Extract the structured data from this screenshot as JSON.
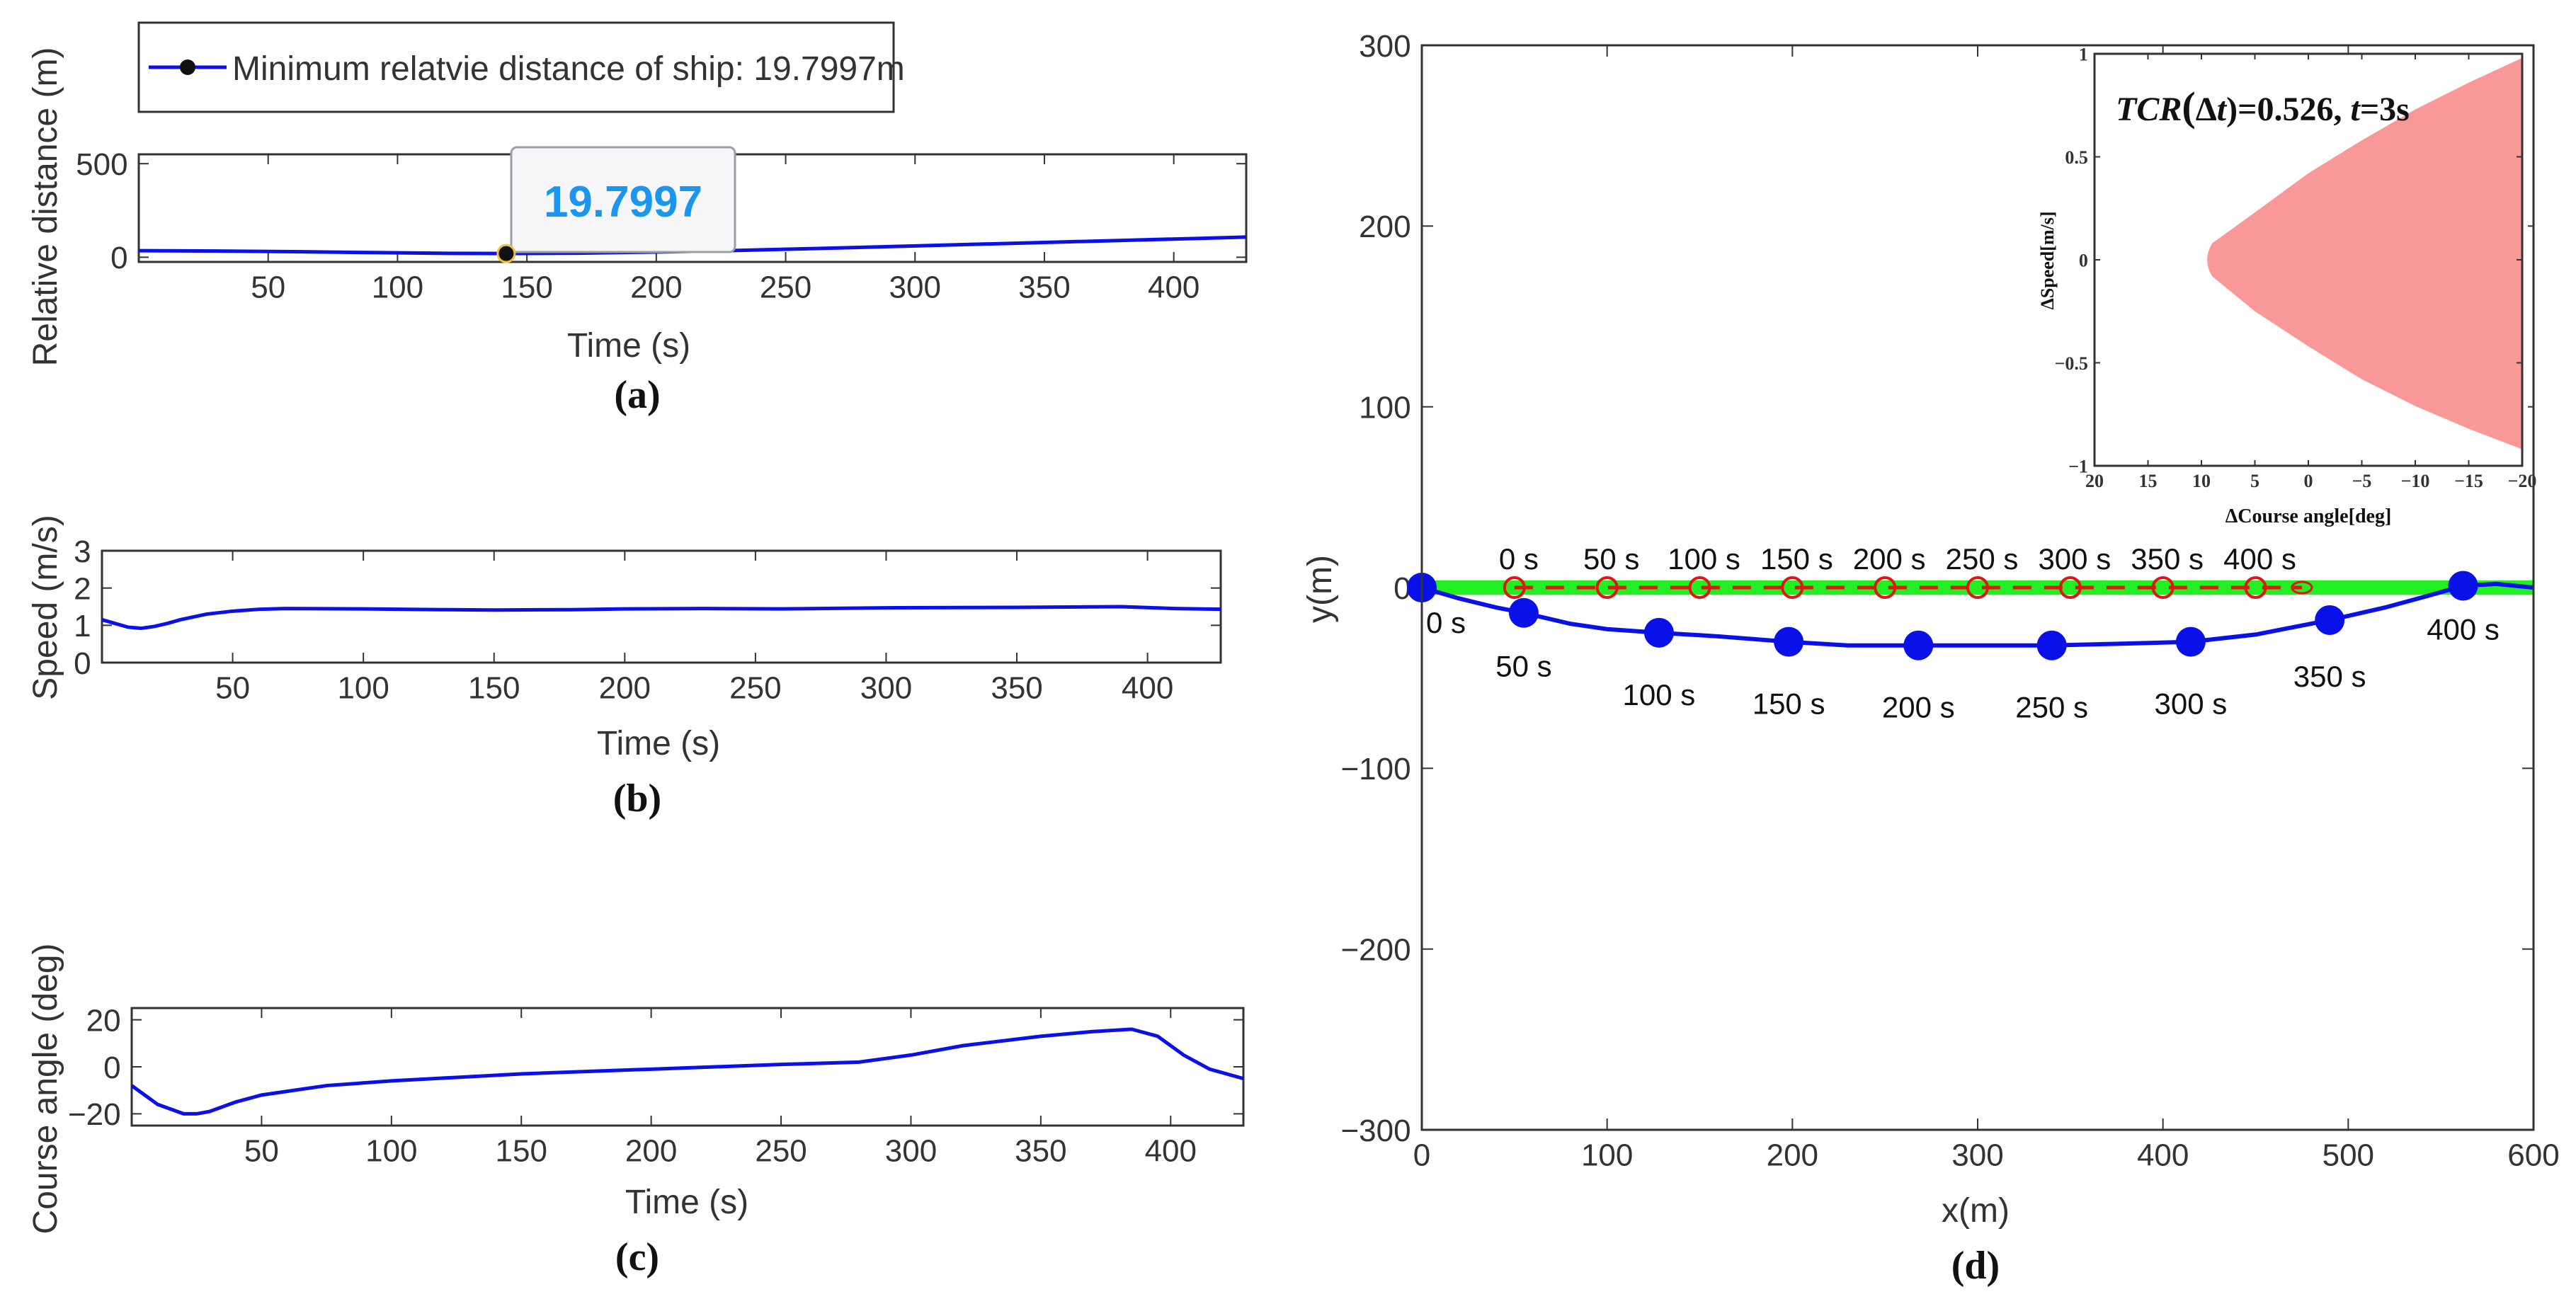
{
  "colors": {
    "ship": "#0a10e8",
    "target": "#e01515",
    "band": "#22ee22",
    "region": "#f89898",
    "tip": "#1a96ee",
    "axis": "#333333"
  },
  "chart_data": [
    {
      "id": "a",
      "type": "line",
      "panel_label": "(a)",
      "xlabel": "Time (s)",
      "ylabel": "Relative distance (m)",
      "xlim": [
        0,
        428
      ],
      "ylim": [
        -25,
        550
      ],
      "xticks": [
        50,
        100,
        150,
        200,
        250,
        300,
        350,
        400
      ],
      "yticks": [
        0,
        500
      ],
      "legend": {
        "label": "Minimum relatvie distance of ship:",
        "value": "19.7997m"
      },
      "datatip": {
        "x": 142,
        "y": 19.7997,
        "text": "19.7997"
      },
      "x": [
        0,
        30,
        60,
        90,
        120,
        142,
        170,
        200,
        230,
        260,
        290,
        320,
        350,
        380,
        410,
        428
      ],
      "y": [
        35,
        33,
        30,
        25,
        21,
        19.8,
        22,
        28,
        36,
        46,
        57,
        68,
        79,
        90,
        101,
        108
      ]
    },
    {
      "id": "b",
      "type": "line",
      "panel_label": "(b)",
      "xlabel": "Time (s)",
      "ylabel": "Speed (m/s)",
      "xlim": [
        0,
        428
      ],
      "ylim": [
        0,
        3
      ],
      "xticks": [
        50,
        100,
        150,
        200,
        250,
        300,
        350,
        400
      ],
      "yticks": [
        0,
        1,
        2,
        3
      ],
      "x": [
        0,
        5,
        10,
        15,
        20,
        25,
        30,
        40,
        50,
        60,
        70,
        100,
        130,
        150,
        180,
        200,
        230,
        260,
        300,
        350,
        390,
        410,
        428
      ],
      "y": [
        1.15,
        1.05,
        0.95,
        0.92,
        0.97,
        1.05,
        1.15,
        1.3,
        1.38,
        1.43,
        1.45,
        1.44,
        1.42,
        1.41,
        1.42,
        1.44,
        1.45,
        1.44,
        1.47,
        1.48,
        1.5,
        1.45,
        1.43
      ]
    },
    {
      "id": "c",
      "type": "line",
      "panel_label": "(c)",
      "xlabel": "Time (s)",
      "ylabel": "Course angle (deg)",
      "xlim": [
        0,
        428
      ],
      "ylim": [
        -25,
        25
      ],
      "xticks": [
        50,
        100,
        150,
        200,
        250,
        300,
        350,
        400
      ],
      "yticks": [
        -20,
        0,
        20
      ],
      "x": [
        0,
        10,
        20,
        25,
        30,
        40,
        50,
        75,
        100,
        150,
        200,
        250,
        280,
        300,
        320,
        350,
        370,
        385,
        395,
        405,
        415,
        428
      ],
      "y": [
        -8,
        -16,
        -20,
        -20,
        -19,
        -15,
        -12,
        -8,
        -6,
        -3,
        -1,
        1,
        2,
        5,
        9,
        13,
        15,
        16,
        13,
        5,
        -1,
        -5
      ]
    },
    {
      "id": "d",
      "type": "scatter",
      "panel_label": "(d)",
      "xlabel": "x(m)",
      "ylabel": "y(m)",
      "xlim": [
        0,
        600
      ],
      "ylim": [
        -300,
        300
      ],
      "xticks": [
        0,
        100,
        200,
        300,
        400,
        500,
        600
      ],
      "yticks": [
        -300,
        -200,
        -100,
        0,
        100,
        200,
        300
      ],
      "band": {
        "x": [
          0,
          600
        ],
        "y": [
          -4,
          4
        ]
      },
      "ship_path": {
        "x": [
          0,
          20,
          40,
          55,
          80,
          100,
          128,
          160,
          198,
          230,
          268,
          300,
          340,
          380,
          415,
          450,
          490,
          520,
          545,
          562,
          580,
          600
        ],
        "y": [
          0,
          -6,
          -11,
          -14,
          -20,
          -23,
          -25,
          -27,
          -30,
          -32,
          -32,
          -32,
          -32,
          -31,
          -30,
          -26,
          -18,
          -11,
          -4,
          1,
          2,
          0
        ]
      },
      "ship_points": [
        {
          "x": 0,
          "y": 0,
          "label": "0 s"
        },
        {
          "x": 55,
          "y": -14,
          "label": "50 s"
        },
        {
          "x": 128,
          "y": -25,
          "label": "100 s"
        },
        {
          "x": 198,
          "y": -30,
          "label": "150 s"
        },
        {
          "x": 268,
          "y": -32,
          "label": "200 s"
        },
        {
          "x": 340,
          "y": -32,
          "label": "250 s"
        },
        {
          "x": 415,
          "y": -30,
          "label": "300 s"
        },
        {
          "x": 490,
          "y": -18,
          "label": "350 s"
        },
        {
          "x": 562,
          "y": 1,
          "label": "400 s"
        }
      ],
      "target_path": {
        "x": [
          50,
          475
        ],
        "y": [
          0,
          0
        ]
      },
      "target_points": [
        {
          "x": 50,
          "y": 0,
          "label": "0 s"
        },
        {
          "x": 100,
          "y": 0,
          "label": "50 s"
        },
        {
          "x": 150,
          "y": 0,
          "label": "100 s"
        },
        {
          "x": 200,
          "y": 0,
          "label": "150 s"
        },
        {
          "x": 250,
          "y": 0,
          "label": "200 s"
        },
        {
          "x": 300,
          "y": 0,
          "label": "250 s"
        },
        {
          "x": 350,
          "y": 0,
          "label": "300 s"
        },
        {
          "x": 400,
          "y": 0,
          "label": "350 s"
        },
        {
          "x": 450,
          "y": 0,
          "label": "400 s"
        }
      ],
      "target_end": {
        "x": 475,
        "y": 0
      }
    },
    {
      "id": "inset",
      "type": "area",
      "xlabel": "ΔCourse angle[deg]",
      "ylabel": "ΔSpeed[m/s]",
      "xlim": [
        20,
        -20
      ],
      "ylim": [
        -1,
        1
      ],
      "xticks": [
        20,
        15,
        10,
        5,
        0,
        -5,
        -10,
        -15,
        -20
      ],
      "yticks": [
        -1,
        -0.5,
        0,
        0.5,
        1
      ],
      "annotation_parts": [
        "TCR",
        "(",
        "Δ",
        "t",
        ")=0.526, ",
        "t",
        "=3s"
      ],
      "region_upper": {
        "x": [
          9,
          5,
          0,
          -5,
          -10,
          -15,
          -20
        ],
        "y": [
          0.08,
          0.23,
          0.42,
          0.58,
          0.73,
          0.86,
          0.98
        ]
      },
      "region_lower": {
        "x": [
          9,
          5,
          0,
          -5,
          -10,
          -15,
          -20
        ],
        "y": [
          -0.08,
          -0.25,
          -0.42,
          -0.58,
          -0.71,
          -0.82,
          -0.92
        ]
      }
    }
  ]
}
